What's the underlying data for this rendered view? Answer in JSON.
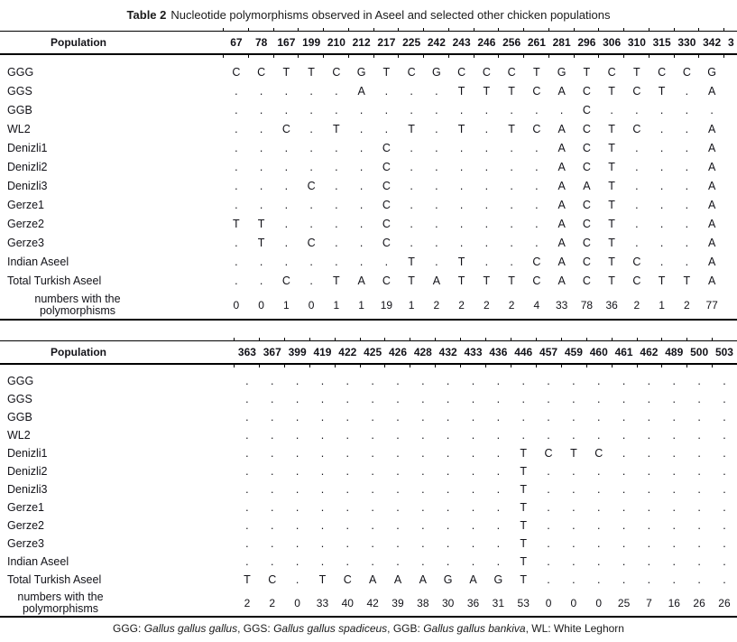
{
  "caption": {
    "label": "Table 2",
    "text": "Nucleotide polymorphisms observed in Aseel and selected other chicken populations"
  },
  "style": {
    "ink": "#121218",
    "rule_color": "#000000",
    "background": "#ffffff"
  },
  "tables": [
    {
      "id": "table1",
      "label_header": "Population",
      "positions": [
        "67",
        "78",
        "167",
        "199",
        "210",
        "212",
        "217",
        "225",
        "242",
        "243",
        "246",
        "256",
        "261",
        "281",
        "296",
        "306",
        "310",
        "315",
        "330",
        "342"
      ],
      "clipped_position": "3",
      "rows": [
        {
          "label": "GGG",
          "cells": [
            "C",
            "C",
            "T",
            "T",
            "C",
            "G",
            "T",
            "C",
            "G",
            "C",
            "C",
            "C",
            "T",
            "G",
            "T",
            "C",
            "T",
            "C",
            "C",
            "G"
          ]
        },
        {
          "label": "GGS",
          "cells": [
            ".",
            ".",
            ".",
            ".",
            ".",
            "A",
            ".",
            ".",
            ".",
            "T",
            "T",
            "T",
            "C",
            "A",
            "C",
            "T",
            "C",
            "T",
            ".",
            "A"
          ]
        },
        {
          "label": "GGB",
          "cells": [
            ".",
            ".",
            ".",
            ".",
            ".",
            ".",
            ".",
            ".",
            ".",
            ".",
            ".",
            ".",
            ".",
            ".",
            "C",
            ".",
            ".",
            ".",
            ".",
            "."
          ]
        },
        {
          "label": "WL2",
          "cells": [
            ".",
            ".",
            "C",
            ".",
            "T",
            ".",
            ".",
            "T",
            ".",
            "T",
            ".",
            "T",
            "C",
            "A",
            "C",
            "T",
            "C",
            ".",
            ".",
            "A"
          ]
        },
        {
          "label": "Denizli1",
          "cells": [
            ".",
            ".",
            ".",
            ".",
            ".",
            ".",
            "C",
            ".",
            ".",
            ".",
            ".",
            ".",
            ".",
            "A",
            "C",
            "T",
            ".",
            ".",
            ".",
            "A"
          ]
        },
        {
          "label": "Denizli2",
          "cells": [
            ".",
            ".",
            ".",
            ".",
            ".",
            ".",
            "C",
            ".",
            ".",
            ".",
            ".",
            ".",
            ".",
            "A",
            "C",
            "T",
            ".",
            ".",
            ".",
            "A"
          ]
        },
        {
          "label": "Denizli3",
          "cells": [
            ".",
            ".",
            ".",
            "C",
            ".",
            ".",
            "C",
            ".",
            ".",
            ".",
            ".",
            ".",
            ".",
            "A",
            "A",
            "T",
            ".",
            ".",
            ".",
            "A"
          ]
        },
        {
          "label": "Gerze1",
          "cells": [
            ".",
            ".",
            ".",
            ".",
            ".",
            ".",
            "C",
            ".",
            ".",
            ".",
            ".",
            ".",
            ".",
            "A",
            "C",
            "T",
            ".",
            ".",
            ".",
            "A"
          ]
        },
        {
          "label": "Gerze2",
          "cells": [
            "T",
            "T",
            ".",
            ".",
            ".",
            ".",
            "C",
            ".",
            ".",
            ".",
            ".",
            ".",
            ".",
            "A",
            "C",
            "T",
            ".",
            ".",
            ".",
            "A"
          ]
        },
        {
          "label": "Gerze3",
          "cells": [
            ".",
            "T",
            ".",
            "C",
            ".",
            ".",
            "C",
            ".",
            ".",
            ".",
            ".",
            ".",
            ".",
            "A",
            "C",
            "T",
            ".",
            ".",
            ".",
            "A"
          ]
        },
        {
          "label": "Indian Aseel",
          "cells": [
            ".",
            ".",
            ".",
            ".",
            ".",
            ".",
            ".",
            "T",
            ".",
            "T",
            ".",
            ".",
            "C",
            "A",
            "C",
            "T",
            "C",
            ".",
            ".",
            "A"
          ]
        },
        {
          "label": "Total Turkish Aseel",
          "cells": [
            ".",
            ".",
            "C",
            ".",
            "T",
            "A",
            "C",
            "T",
            "A",
            "T",
            "T",
            "T",
            "C",
            "A",
            "C",
            "T",
            "C",
            "T",
            "T",
            "A"
          ]
        }
      ],
      "counts_label_line1": "numbers with the",
      "counts_label_line2": "polymorphisms",
      "counts": [
        "0",
        "0",
        "1",
        "0",
        "1",
        "1",
        "19",
        "1",
        "2",
        "2",
        "2",
        "2",
        "4",
        "33",
        "78",
        "36",
        "2",
        "1",
        "2",
        "77"
      ]
    },
    {
      "id": "table2",
      "label_header": "Population",
      "positions": [
        "363",
        "367",
        "399",
        "419",
        "422",
        "425",
        "426",
        "428",
        "432",
        "433",
        "436",
        "446",
        "457",
        "459",
        "460",
        "461",
        "462",
        "489",
        "500",
        "503"
      ],
      "clipped_position": null,
      "rows": [
        {
          "label": "GGG",
          "cells": [
            ".",
            ".",
            ".",
            ".",
            ".",
            ".",
            ".",
            ".",
            ".",
            ".",
            ".",
            ".",
            ".",
            ".",
            ".",
            ".",
            ".",
            ".",
            ".",
            "."
          ]
        },
        {
          "label": "GGS",
          "cells": [
            ".",
            ".",
            ".",
            ".",
            ".",
            ".",
            ".",
            ".",
            ".",
            ".",
            ".",
            ".",
            ".",
            ".",
            ".",
            ".",
            ".",
            ".",
            ".",
            "."
          ]
        },
        {
          "label": "GGB",
          "cells": [
            ".",
            ".",
            ".",
            ".",
            ".",
            ".",
            ".",
            ".",
            ".",
            ".",
            ".",
            ".",
            ".",
            ".",
            ".",
            ".",
            ".",
            ".",
            ".",
            "."
          ]
        },
        {
          "label": "WL2",
          "cells": [
            ".",
            ".",
            ".",
            ".",
            ".",
            ".",
            ".",
            ".",
            ".",
            ".",
            ".",
            ".",
            ".",
            ".",
            ".",
            ".",
            ".",
            ".",
            ".",
            "."
          ]
        },
        {
          "label": "Denizli1",
          "cells": [
            ".",
            ".",
            ".",
            ".",
            ".",
            ".",
            ".",
            ".",
            ".",
            ".",
            ".",
            "T",
            "C",
            "T",
            "C",
            ".",
            ".",
            ".",
            ".",
            "."
          ]
        },
        {
          "label": "Denizli2",
          "cells": [
            ".",
            ".",
            ".",
            ".",
            ".",
            ".",
            ".",
            ".",
            ".",
            ".",
            ".",
            "T",
            ".",
            ".",
            ".",
            ".",
            ".",
            ".",
            ".",
            "."
          ]
        },
        {
          "label": "Denizli3",
          "cells": [
            ".",
            ".",
            ".",
            ".",
            ".",
            ".",
            ".",
            ".",
            ".",
            ".",
            ".",
            "T",
            ".",
            ".",
            ".",
            ".",
            ".",
            ".",
            ".",
            "."
          ]
        },
        {
          "label": "Gerze1",
          "cells": [
            ".",
            ".",
            ".",
            ".",
            ".",
            ".",
            ".",
            ".",
            ".",
            ".",
            ".",
            "T",
            ".",
            ".",
            ".",
            ".",
            ".",
            ".",
            ".",
            "."
          ]
        },
        {
          "label": "Gerze2",
          "cells": [
            ".",
            ".",
            ".",
            ".",
            ".",
            ".",
            ".",
            ".",
            ".",
            ".",
            ".",
            "T",
            ".",
            ".",
            ".",
            ".",
            ".",
            ".",
            ".",
            "."
          ]
        },
        {
          "label": "Gerze3",
          "cells": [
            ".",
            ".",
            ".",
            ".",
            ".",
            ".",
            ".",
            ".",
            ".",
            ".",
            ".",
            "T",
            ".",
            ".",
            ".",
            ".",
            ".",
            ".",
            ".",
            "."
          ]
        },
        {
          "label": "Indian Aseel",
          "cells": [
            ".",
            ".",
            ".",
            ".",
            ".",
            ".",
            ".",
            ".",
            ".",
            ".",
            ".",
            "T",
            ".",
            ".",
            ".",
            ".",
            ".",
            ".",
            ".",
            "."
          ]
        },
        {
          "label": "Total Turkish Aseel",
          "cells": [
            "T",
            "C",
            ".",
            "T",
            "C",
            "A",
            "A",
            "A",
            "G",
            "A",
            "G",
            "T",
            ".",
            ".",
            ".",
            ".",
            ".",
            ".",
            ".",
            "."
          ]
        }
      ],
      "counts_label_line1": "numbers with the",
      "counts_label_line2": "polymorphisms",
      "counts": [
        "2",
        "2",
        "0",
        "33",
        "40",
        "42",
        "39",
        "38",
        "30",
        "36",
        "31",
        "53",
        "0",
        "0",
        "0",
        "25",
        "7",
        "16",
        "26",
        "26"
      ]
    }
  ],
  "footnote": {
    "segments": [
      {
        "text": "GGG: ",
        "italic": false
      },
      {
        "text": "Gallus gallus gallus",
        "italic": true
      },
      {
        "text": ", GGS: ",
        "italic": false
      },
      {
        "text": "Gallus gallus spadiceus",
        "italic": true
      },
      {
        "text": ", GGB: ",
        "italic": false
      },
      {
        "text": "Gallus gallus bankiva",
        "italic": true
      },
      {
        "text": ", WL: White Leghorn",
        "italic": false
      }
    ]
  }
}
